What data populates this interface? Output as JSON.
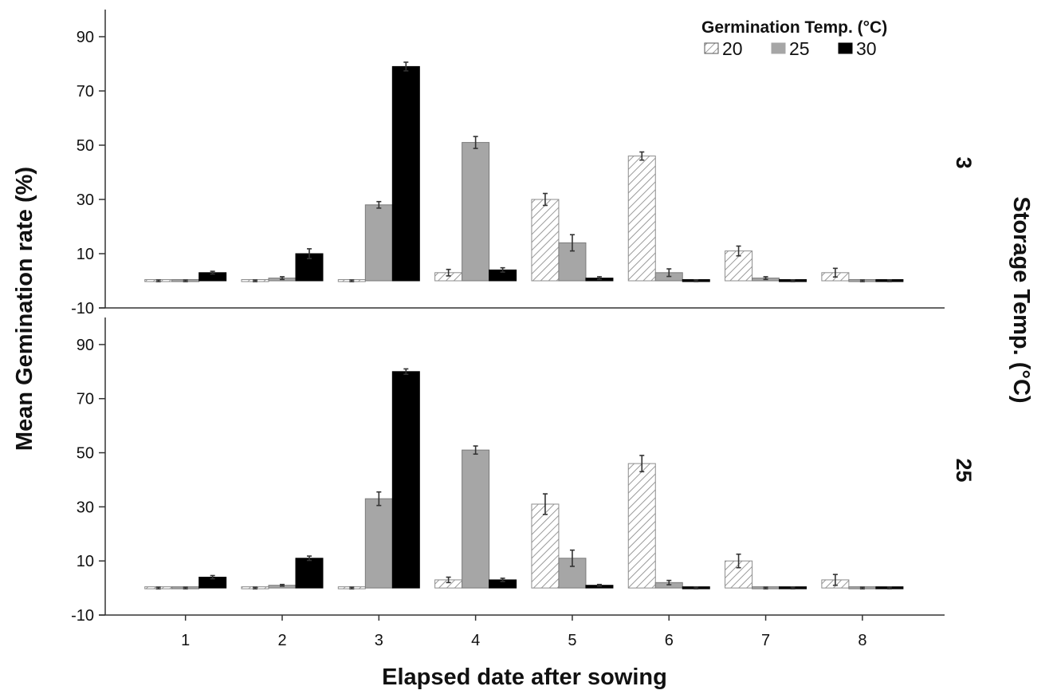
{
  "chart_data": {
    "type": "bar",
    "xlabel": "Elapsed date after sowing",
    "ylabel": "Mean Gemination rate (%)",
    "facet_label": "Storage Temp. (°C)",
    "legend": {
      "title": "Germination Temp. (°C)",
      "position": "top-right",
      "entries": [
        {
          "label": "20",
          "style": "hatched",
          "color": "#ffffff"
        },
        {
          "label": "25",
          "style": "solid",
          "color": "#a6a6a6"
        },
        {
          "label": "30",
          "style": "solid",
          "color": "#000000"
        }
      ]
    },
    "categories": [
      "1",
      "2",
      "3",
      "4",
      "5",
      "6",
      "7",
      "8"
    ],
    "ylim": [
      -10,
      100
    ],
    "yticks": [
      "90",
      "70",
      "50",
      "30",
      "10",
      "-10"
    ],
    "panels": [
      {
        "label": "3",
        "series": [
          {
            "name": "20",
            "values": [
              0,
              0,
              0,
              3,
              30,
              46,
              11,
              3
            ],
            "errors": [
              0.3,
              0.3,
              0.3,
              1.2,
              2.2,
              1.5,
              1.8,
              1.6
            ]
          },
          {
            "name": "25",
            "values": [
              0,
              1,
              28,
              51,
              14,
              3,
              1,
              0
            ],
            "errors": [
              0.3,
              0.5,
              1.2,
              2.2,
              3.0,
              1.4,
              0.5,
              0.3
            ]
          },
          {
            "name": "30",
            "values": [
              3,
              10,
              79,
              4,
              1,
              0,
              0,
              0
            ],
            "errors": [
              0.5,
              1.8,
              1.6,
              0.8,
              0.5,
              0.3,
              0.3,
              0.3
            ]
          }
        ]
      },
      {
        "label": "25",
        "series": [
          {
            "name": "20",
            "values": [
              0,
              0,
              0,
              3,
              31,
              46,
              10,
              3
            ],
            "errors": [
              0.3,
              0.3,
              0.3,
              1.0,
              3.8,
              3.0,
              2.5,
              2.0
            ]
          },
          {
            "name": "25",
            "values": [
              0,
              1,
              33,
              51,
              11,
              2,
              0,
              0
            ],
            "errors": [
              0.3,
              0.3,
              2.5,
              1.5,
              3.0,
              0.8,
              0.3,
              0.3
            ]
          },
          {
            "name": "30",
            "values": [
              4,
              11,
              80,
              3,
              1,
              0,
              0,
              0
            ],
            "errors": [
              0.6,
              0.8,
              1.0,
              0.6,
              0.3,
              0.3,
              0.3,
              0.3
            ]
          }
        ]
      }
    ]
  }
}
